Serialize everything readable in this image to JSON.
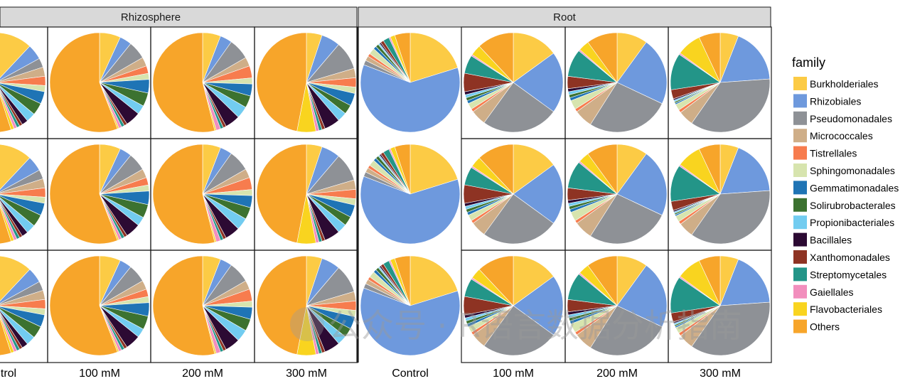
{
  "chart_data": {
    "type": "pie",
    "facet_columns": [
      "Rhizosphere",
      "Root"
    ],
    "x_tick_labels": [
      "trol",
      "100 mM",
      "200 mM",
      "300 mM",
      "Control",
      "100 mM",
      "200 mM",
      "300 mM"
    ],
    "legend": {
      "title": "family",
      "placement": "right",
      "entries": [
        {
          "name": "Burkholderiales",
          "color": "#FCCB45"
        },
        {
          "name": "Rhizobiales",
          "color": "#6E99DD"
        },
        {
          "name": "Pseudomonadales",
          "color": "#8E9196"
        },
        {
          "name": "Micrococcales",
          "color": "#CFAE88"
        },
        {
          "name": "Tistrellales",
          "color": "#F77C4E"
        },
        {
          "name": "Sphingomonadales",
          "color": "#D7E4AE"
        },
        {
          "name": "Gemmatimonadales",
          "color": "#1F74B5"
        },
        {
          "name": "Solirubrobacterales",
          "color": "#3C7230"
        },
        {
          "name": "Propionibacteriales",
          "color": "#72CCF0"
        },
        {
          "name": "Bacillales",
          "color": "#2C0A33"
        },
        {
          "name": "Xanthomonadales",
          "color": "#8E3323"
        },
        {
          "name": "Streptomycetales",
          "color": "#239588"
        },
        {
          "name": "Gaiellales",
          "color": "#F28EBD"
        },
        {
          "name": "Flavobacteriales",
          "color": "#F9D41F"
        },
        {
          "name": "Others",
          "color": "#F7A52A"
        }
      ]
    },
    "pies": [
      {
        "facet": "Rhizosphere",
        "treatment": "Control",
        "replicate": 1,
        "values": [
          0.12,
          0.05,
          0.03,
          0.03,
          0.03,
          0.02,
          0.04,
          0.04,
          0.03,
          0.02,
          0.01,
          0.01,
          0.01,
          0.01,
          0.55
        ]
      },
      {
        "facet": "Rhizosphere",
        "treatment": "Control",
        "replicate": 2,
        "values": [
          0.12,
          0.05,
          0.03,
          0.03,
          0.03,
          0.02,
          0.04,
          0.04,
          0.03,
          0.02,
          0.01,
          0.01,
          0.01,
          0.01,
          0.55
        ]
      },
      {
        "facet": "Rhizosphere",
        "treatment": "Control",
        "replicate": 3,
        "values": [
          0.12,
          0.05,
          0.03,
          0.03,
          0.03,
          0.02,
          0.04,
          0.04,
          0.03,
          0.02,
          0.01,
          0.01,
          0.01,
          0.01,
          0.55
        ]
      },
      {
        "facet": "Rhizosphere",
        "treatment": "100 mM",
        "replicate": 1,
        "values": [
          0.07,
          0.04,
          0.06,
          0.03,
          0.025,
          0.02,
          0.045,
          0.045,
          0.03,
          0.05,
          0.01,
          0.01,
          0.01,
          0.005,
          0.57
        ]
      },
      {
        "facet": "Rhizosphere",
        "treatment": "100 mM",
        "replicate": 2,
        "values": [
          0.07,
          0.04,
          0.06,
          0.03,
          0.025,
          0.02,
          0.045,
          0.045,
          0.03,
          0.05,
          0.01,
          0.01,
          0.01,
          0.005,
          0.57
        ]
      },
      {
        "facet": "Rhizosphere",
        "treatment": "100 mM",
        "replicate": 3,
        "values": [
          0.07,
          0.04,
          0.06,
          0.03,
          0.025,
          0.02,
          0.045,
          0.045,
          0.03,
          0.05,
          0.01,
          0.01,
          0.01,
          0.005,
          0.57
        ]
      },
      {
        "facet": "Rhizosphere",
        "treatment": "200 mM",
        "replicate": 1,
        "values": [
          0.06,
          0.04,
          0.07,
          0.03,
          0.04,
          0.02,
          0.04,
          0.04,
          0.04,
          0.05,
          0.01,
          0.01,
          0.015,
          0.005,
          0.55
        ]
      },
      {
        "facet": "Rhizosphere",
        "treatment": "200 mM",
        "replicate": 2,
        "values": [
          0.06,
          0.04,
          0.07,
          0.03,
          0.04,
          0.02,
          0.04,
          0.04,
          0.04,
          0.05,
          0.01,
          0.01,
          0.015,
          0.005,
          0.55
        ]
      },
      {
        "facet": "Rhizosphere",
        "treatment": "200 mM",
        "replicate": 3,
        "values": [
          0.06,
          0.04,
          0.07,
          0.03,
          0.04,
          0.02,
          0.04,
          0.04,
          0.04,
          0.05,
          0.01,
          0.01,
          0.015,
          0.005,
          0.55
        ]
      },
      {
        "facet": "Rhizosphere",
        "treatment": "300 mM",
        "replicate": 1,
        "values": [
          0.05,
          0.06,
          0.09,
          0.03,
          0.03,
          0.02,
          0.04,
          0.03,
          0.03,
          0.05,
          0.01,
          0.01,
          0.01,
          0.06,
          0.46
        ]
      },
      {
        "facet": "Rhizosphere",
        "treatment": "300 mM",
        "replicate": 2,
        "values": [
          0.05,
          0.06,
          0.09,
          0.03,
          0.03,
          0.02,
          0.04,
          0.03,
          0.03,
          0.05,
          0.01,
          0.01,
          0.01,
          0.06,
          0.46
        ]
      },
      {
        "facet": "Rhizosphere",
        "treatment": "300 mM",
        "replicate": 3,
        "values": [
          0.05,
          0.06,
          0.09,
          0.03,
          0.03,
          0.02,
          0.04,
          0.03,
          0.03,
          0.05,
          0.01,
          0.01,
          0.01,
          0.06,
          0.46
        ]
      },
      {
        "facet": "Root",
        "treatment": "Control",
        "replicate": 1,
        "values": [
          0.2,
          0.6,
          0.015,
          0.015,
          0.01,
          0.02,
          0.01,
          0.01,
          0.005,
          0.005,
          0.01,
          0.02,
          0.005,
          0.015,
          0.05
        ]
      },
      {
        "facet": "Root",
        "treatment": "Control",
        "replicate": 2,
        "values": [
          0.2,
          0.6,
          0.015,
          0.015,
          0.01,
          0.02,
          0.01,
          0.01,
          0.005,
          0.005,
          0.01,
          0.02,
          0.005,
          0.015,
          0.05
        ]
      },
      {
        "facet": "Root",
        "treatment": "Control",
        "replicate": 3,
        "values": [
          0.2,
          0.6,
          0.015,
          0.015,
          0.01,
          0.02,
          0.01,
          0.01,
          0.005,
          0.005,
          0.01,
          0.02,
          0.005,
          0.015,
          0.05
        ]
      },
      {
        "facet": "Root",
        "treatment": "100 mM",
        "replicate": 1,
        "values": [
          0.15,
          0.2,
          0.25,
          0.05,
          0.01,
          0.02,
          0.01,
          0.01,
          0.01,
          0.01,
          0.06,
          0.06,
          0.005,
          0.035,
          0.12
        ]
      },
      {
        "facet": "Root",
        "treatment": "100 mM",
        "replicate": 2,
        "values": [
          0.15,
          0.2,
          0.25,
          0.05,
          0.01,
          0.02,
          0.01,
          0.01,
          0.01,
          0.01,
          0.06,
          0.06,
          0.005,
          0.035,
          0.12
        ]
      },
      {
        "facet": "Root",
        "treatment": "100 mM",
        "replicate": 3,
        "values": [
          0.15,
          0.2,
          0.25,
          0.05,
          0.01,
          0.02,
          0.01,
          0.01,
          0.01,
          0.01,
          0.06,
          0.06,
          0.005,
          0.035,
          0.12
        ]
      },
      {
        "facet": "Root",
        "treatment": "200 mM",
        "replicate": 1,
        "values": [
          0.1,
          0.22,
          0.27,
          0.06,
          0.01,
          0.03,
          0.01,
          0.01,
          0.01,
          0.01,
          0.04,
          0.09,
          0.005,
          0.035,
          0.1
        ]
      },
      {
        "facet": "Root",
        "treatment": "200 mM",
        "replicate": 2,
        "values": [
          0.1,
          0.22,
          0.27,
          0.06,
          0.01,
          0.03,
          0.01,
          0.01,
          0.01,
          0.01,
          0.04,
          0.09,
          0.005,
          0.035,
          0.1
        ]
      },
      {
        "facet": "Root",
        "treatment": "200 mM",
        "replicate": 3,
        "values": [
          0.1,
          0.22,
          0.27,
          0.06,
          0.01,
          0.03,
          0.01,
          0.01,
          0.01,
          0.01,
          0.04,
          0.09,
          0.005,
          0.035,
          0.1
        ]
      },
      {
        "facet": "Root",
        "treatment": "300 mM",
        "replicate": 1,
        "values": [
          0.06,
          0.18,
          0.36,
          0.05,
          0.01,
          0.02,
          0.005,
          0.005,
          0.005,
          0.005,
          0.03,
          0.12,
          0.005,
          0.08,
          0.07
        ]
      },
      {
        "facet": "Root",
        "treatment": "300 mM",
        "replicate": 2,
        "values": [
          0.06,
          0.18,
          0.36,
          0.05,
          0.01,
          0.02,
          0.005,
          0.005,
          0.005,
          0.005,
          0.03,
          0.12,
          0.005,
          0.08,
          0.07
        ]
      },
      {
        "facet": "Root",
        "treatment": "300 mM",
        "replicate": 3,
        "values": [
          0.06,
          0.18,
          0.36,
          0.05,
          0.01,
          0.02,
          0.005,
          0.005,
          0.005,
          0.005,
          0.03,
          0.12,
          0.005,
          0.08,
          0.07
        ]
      }
    ]
  },
  "watermark": {
    "text": "公众号 · R语言数据分析指南"
  }
}
